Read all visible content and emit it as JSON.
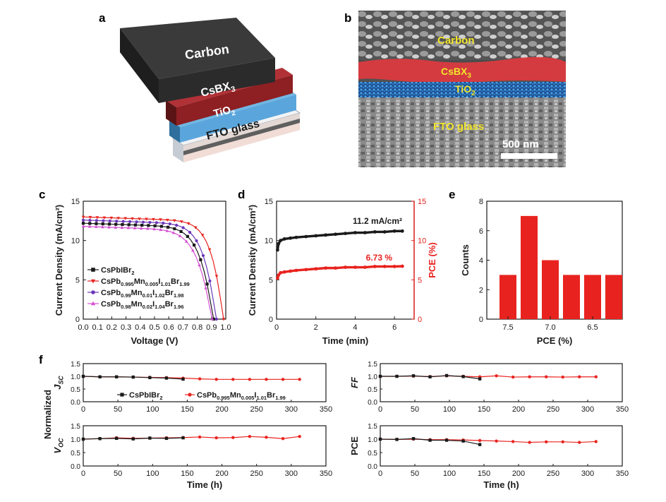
{
  "panel_letters": {
    "a": "a",
    "b": "b",
    "c": "c",
    "d": "d",
    "e": "e",
    "f": "f"
  },
  "schematic": {
    "layers": [
      {
        "name": "carbon",
        "label": "Carbon",
        "color": "#2e2e2e"
      },
      {
        "name": "csbx3",
        "label_main": "CsBX",
        "label_sub": "3",
        "color": "#8e1f22"
      },
      {
        "name": "tio2",
        "label_main": "TiO",
        "label_sub": "2",
        "color": "#5aa6dc"
      },
      {
        "name": "fto",
        "label": "FTO glass",
        "color": "#e6eaef"
      }
    ]
  },
  "sem": {
    "labels": {
      "carbon": "Carbon",
      "csbx3_main": "CsBX",
      "csbx3_sub": "3",
      "tio2_main": "TiO",
      "tio2_sub": "2",
      "fto": "FTO glass"
    },
    "scale_bar": "500 nm",
    "label_color": "#f2e52b"
  },
  "colors": {
    "black": "#1a1a1a",
    "red": "#e8231f",
    "purple": "#6a36b8",
    "magenta": "#d44fd0"
  },
  "chart_data": [
    {
      "id": "c",
      "type": "line",
      "xlabel": "Voltage (V)",
      "ylabel": "Current Density (mA/cm²)",
      "xlim": [
        0,
        1.0
      ],
      "ylim": [
        0,
        15
      ],
      "xticks": [
        "0.0",
        "0.1",
        "0.2",
        "0.3",
        "0.4",
        "0.5",
        "0.6",
        "0.7",
        "0.8",
        "0.9",
        "1.0"
      ],
      "yticks": [
        "0",
        "5",
        "10",
        "15"
      ],
      "legend_position": "lower-left",
      "series": [
        {
          "name_parts": [
            [
              "CsPbIBr",
              "n"
            ],
            [
              "2",
              "s"
            ]
          ],
          "color": "#1a1a1a",
          "marker": "square",
          "voc": 0.915,
          "jsc": 12.2,
          "ff": 3.2
        },
        {
          "name_parts": [
            [
              "CsPb",
              "n"
            ],
            [
              "0.995",
              "s"
            ],
            [
              "Mn",
              "n"
            ],
            [
              "0.005",
              "s"
            ],
            [
              "I",
              "n"
            ],
            [
              "1.01",
              "s"
            ],
            [
              "Br",
              "n"
            ],
            [
              "1.99",
              "s"
            ]
          ],
          "color": "#e8231f",
          "marker": "triangle-down",
          "voc": 0.985,
          "jsc": 13.0,
          "ff": 3.8
        },
        {
          "name_parts": [
            [
              "CsPb",
              "n"
            ],
            [
              "0.99",
              "s"
            ],
            [
              "Mn",
              "n"
            ],
            [
              "0.01",
              "s"
            ],
            [
              "I",
              "n"
            ],
            [
              "1.02",
              "s"
            ],
            [
              "Br",
              "n"
            ],
            [
              "1.98",
              "s"
            ]
          ],
          "color": "#6a36b8",
          "marker": "circle",
          "voc": 0.935,
          "jsc": 12.6,
          "ff": 3.4
        },
        {
          "name_parts": [
            [
              "CsPb",
              "n"
            ],
            [
              "0.98",
              "s"
            ],
            [
              "Mn",
              "n"
            ],
            [
              "0.02",
              "s"
            ],
            [
              "I",
              "n"
            ],
            [
              "1.04",
              "s"
            ],
            [
              "Br",
              "n"
            ],
            [
              "1.96",
              "s"
            ]
          ],
          "color": "#d44fd0",
          "marker": "triangle-up",
          "voc": 0.905,
          "jsc": 11.8,
          "ff": 2.9
        }
      ]
    },
    {
      "id": "d",
      "type": "line",
      "xlabel": "Time (min)",
      "ylabel_left": "Current Density (mA/cm²)",
      "ylabel_right": "PCE (%)",
      "xlim": [
        0,
        7
      ],
      "ylim": [
        0,
        15
      ],
      "xticks": [
        "0",
        "2",
        "4",
        "6"
      ],
      "yticks": [
        "0",
        "5",
        "10",
        "15"
      ],
      "annotations": [
        {
          "text": "11.2 mA/cm²",
          "color": "#1a1a1a"
        },
        {
          "text": "6.73 %",
          "color": "#e8231f"
        }
      ],
      "series": [
        {
          "name": "Current Density",
          "color": "#1a1a1a",
          "x": [
            0.05,
            0.1,
            0.2,
            0.4,
            0.7,
            1.0,
            1.5,
            2.0,
            2.5,
            3.0,
            3.5,
            4.0,
            4.5,
            5.0,
            5.5,
            6.0,
            6.4
          ],
          "y": [
            8.8,
            9.6,
            10.0,
            10.2,
            10.3,
            10.4,
            10.5,
            10.6,
            10.7,
            10.8,
            10.9,
            11.0,
            11.0,
            11.1,
            11.1,
            11.2,
            11.2
          ]
        },
        {
          "name": "PCE",
          "color": "#e8231f",
          "x": [
            0.05,
            0.1,
            0.2,
            0.4,
            0.7,
            1.0,
            1.5,
            2.0,
            2.5,
            3.0,
            3.5,
            4.0,
            4.5,
            5.0,
            5.5,
            6.0,
            6.4
          ],
          "y": [
            5.2,
            5.6,
            5.9,
            6.0,
            6.1,
            6.2,
            6.3,
            6.4,
            6.5,
            6.5,
            6.6,
            6.6,
            6.6,
            6.7,
            6.7,
            6.7,
            6.73
          ]
        }
      ]
    },
    {
      "id": "e",
      "type": "bar",
      "xlabel": "PCE (%)",
      "ylabel": "Counts",
      "ylim": [
        0,
        8
      ],
      "yticks": [
        "0",
        "2",
        "4",
        "6",
        "8"
      ],
      "xticks": [
        "7.5",
        "7.0",
        "6.5"
      ],
      "categories": [
        "7.5",
        "7.25",
        "7.0",
        "6.75",
        "6.5",
        "6.25"
      ],
      "values": [
        3,
        7,
        4,
        3,
        3,
        3
      ],
      "bar_color": "#e8231f"
    },
    {
      "id": "f",
      "type": "line",
      "ylabel": "Normalized",
      "xlabel": "Time (h)",
      "xlim": [
        0,
        350
      ],
      "ylim": [
        0.0,
        1.5
      ],
      "xticks": [
        "0",
        "50",
        "100",
        "150",
        "200",
        "250",
        "300",
        "350"
      ],
      "yticks": [
        "0.0",
        "0.5",
        "1.0",
        "1.5"
      ],
      "legend": [
        {
          "name_parts": [
            [
              "CsPbIBr",
              "n"
            ],
            [
              "2",
              "s"
            ]
          ],
          "color": "#1a1a1a",
          "marker": "square"
        },
        {
          "name_parts": [
            [
              "CsPb",
              "n"
            ],
            [
              "0.995",
              "s"
            ],
            [
              "Mn",
              "n"
            ],
            [
              "0.005",
              "s"
            ],
            [
              "I",
              "n"
            ],
            [
              "1.01",
              "s"
            ],
            [
              "Br",
              "n"
            ],
            [
              "1.99",
              "s"
            ]
          ],
          "color": "#e8231f",
          "marker": "circle"
        }
      ],
      "subplots": [
        {
          "id": "jsc",
          "ylabel_main": "J",
          "ylabel_sub": "SC",
          "black": {
            "x": [
              0,
              24,
              48,
              72,
              96,
              120,
              144
            ],
            "y": [
              1.0,
              0.98,
              0.98,
              0.97,
              0.95,
              0.93,
              0.89
            ]
          },
          "red": {
            "x": [
              0,
              24,
              48,
              72,
              96,
              120,
              144,
              168,
              192,
              216,
              240,
              264,
              288,
              312
            ],
            "y": [
              1.0,
              0.98,
              0.98,
              0.97,
              0.96,
              0.95,
              0.93,
              0.9,
              0.88,
              0.88,
              0.88,
              0.88,
              0.88,
              0.88
            ]
          }
        },
        {
          "id": "ff",
          "ylabel_main": "FF",
          "ylabel_sub": "",
          "black": {
            "x": [
              0,
              24,
              48,
              72,
              96,
              120,
              144
            ],
            "y": [
              1.0,
              1.0,
              1.02,
              0.98,
              1.03,
              0.99,
              0.9
            ]
          },
          "red": {
            "x": [
              0,
              24,
              48,
              72,
              96,
              120,
              144,
              168,
              192,
              216,
              240,
              264,
              288,
              312
            ],
            "y": [
              1.0,
              1.0,
              1.01,
              0.99,
              1.02,
              1.0,
              0.98,
              1.02,
              0.97,
              0.98,
              0.98,
              0.97,
              0.98,
              0.98
            ]
          }
        },
        {
          "id": "voc",
          "ylabel_main": "V",
          "ylabel_sub": "OC",
          "black": {
            "x": [
              0,
              24,
              48,
              72,
              96,
              120,
              144
            ],
            "y": [
              1.0,
              1.02,
              1.03,
              1.01,
              1.04,
              1.03,
              1.05
            ]
          },
          "red": {
            "x": [
              0,
              24,
              48,
              72,
              96,
              120,
              144,
              168,
              192,
              216,
              240,
              264,
              288,
              312
            ],
            "y": [
              1.0,
              1.02,
              1.05,
              1.03,
              1.04,
              1.05,
              1.06,
              1.08,
              1.05,
              1.06,
              1.1,
              1.07,
              1.02,
              1.1
            ]
          }
        },
        {
          "id": "pce",
          "ylabel_main": "PCE",
          "ylabel_sub": "",
          "black": {
            "x": [
              0,
              24,
              48,
              72,
              96,
              120,
              144
            ],
            "y": [
              1.0,
              0.99,
              1.02,
              0.96,
              0.96,
              0.93,
              0.8
            ]
          },
          "red": {
            "x": [
              0,
              24,
              48,
              72,
              96,
              120,
              144,
              168,
              192,
              216,
              240,
              264,
              288,
              312
            ],
            "y": [
              1.0,
              0.99,
              1.0,
              0.98,
              0.98,
              0.97,
              0.95,
              0.93,
              0.91,
              0.88,
              0.9,
              0.9,
              0.88,
              0.91
            ]
          }
        }
      ]
    }
  ]
}
